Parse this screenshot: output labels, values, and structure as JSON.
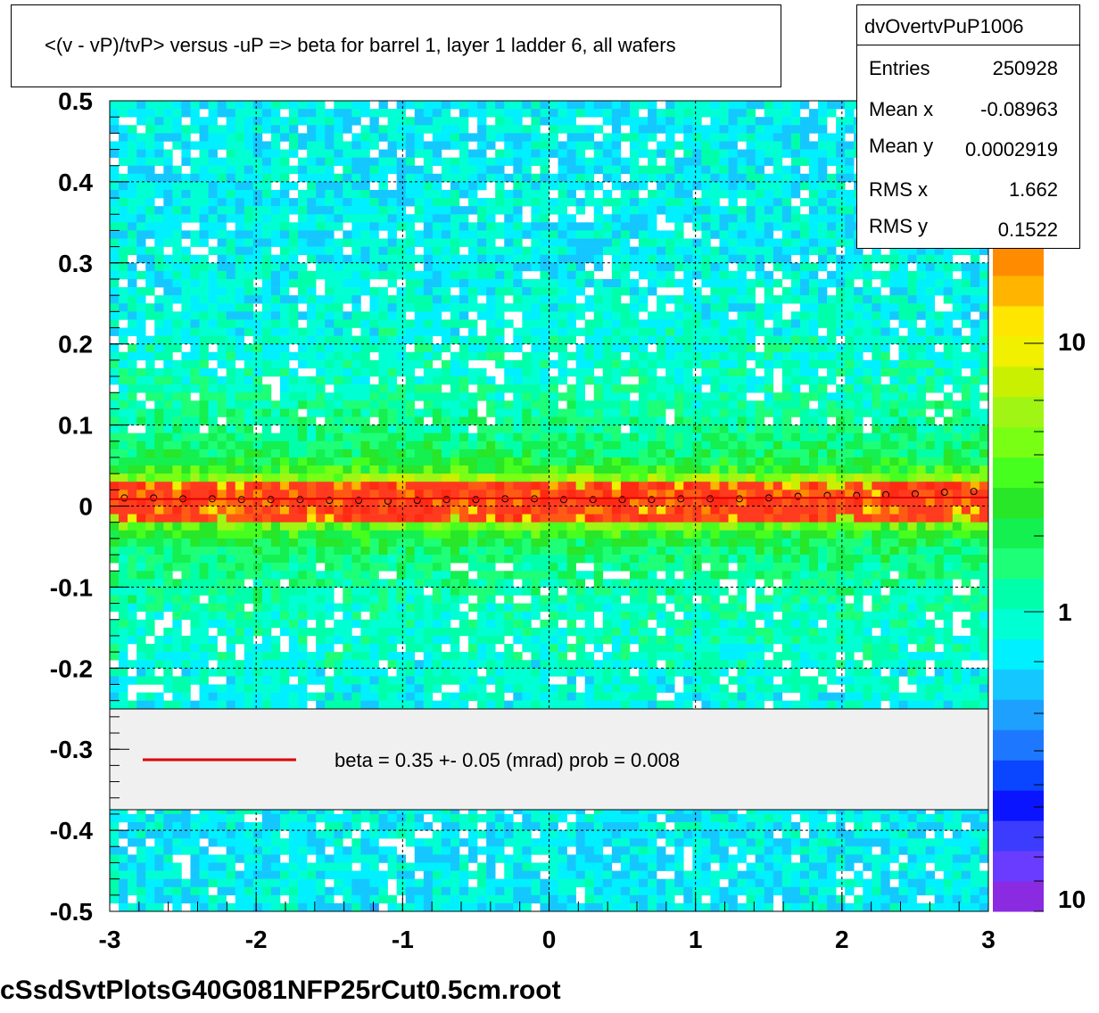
{
  "title": "<(v - vP)/tvP> versus  -uP => beta for barrel 1, layer 1 ladder 6, all wafers",
  "stats": {
    "name": "dvOvertvPuP1006",
    "rows": [
      {
        "label": "Entries",
        "value": "250928"
      },
      {
        "label": "Mean x",
        "value": "-0.08963"
      },
      {
        "label": "Mean y",
        "value": "0.0002919"
      },
      {
        "label": "RMS x",
        "value": "1.662"
      },
      {
        "label": "RMS y",
        "value": "0.1522"
      }
    ]
  },
  "legend": {
    "text": "beta =    0.35 +-  0.05 (mrad) prob = 0.008",
    "line_color": "#e00000"
  },
  "footer": "cSsdSvtPlotsG40G081NFP25rCut0.5cm.root",
  "colors": {
    "palette": [
      "#8a2be2",
      "#6a3cff",
      "#3c3cff",
      "#0a14ff",
      "#0a46ff",
      "#1e78ff",
      "#1ea0ff",
      "#14c8ff",
      "#00f0ff",
      "#00ffd2",
      "#00ffaa",
      "#1eff78",
      "#14f050",
      "#28e628",
      "#46ff1e",
      "#78ff14",
      "#a0f514",
      "#c8f000",
      "#f0f000",
      "#ffe600",
      "#ffb400",
      "#ff8c00"
    ],
    "fit_line": "#e00000"
  },
  "chart_data": {
    "type": "heatmap",
    "title": "<(v - vP)/tvP> versus  -uP => beta for barrel 1, layer 1 ladder 6, all wafers",
    "xlim": [
      -3,
      3
    ],
    "ylim": [
      -0.5,
      0.5
    ],
    "x_ticks": [
      "-3",
      "-2",
      "-1",
      "0",
      "1",
      "2",
      "3"
    ],
    "y_ticks": [
      "-0.5",
      "-0.4",
      "-0.3",
      "-0.2",
      "-0.1",
      "0",
      "0.1",
      "0.2",
      "0.3",
      "0.4",
      "0.5"
    ],
    "z_scale": "log",
    "z_tick_labels": [
      "10",
      "1",
      "10"
    ],
    "grid": true,
    "band_center_y": 0.007,
    "profile_points": {
      "x": [
        -2.9,
        -2.7,
        -2.5,
        -2.3,
        -2.1,
        -1.9,
        -1.7,
        -1.5,
        -1.3,
        -1.1,
        -0.9,
        -0.7,
        -0.5,
        -0.3,
        -0.1,
        0.1,
        0.3,
        0.5,
        0.7,
        0.9,
        1.1,
        1.3,
        1.5,
        1.7,
        1.9,
        2.1,
        2.3,
        2.5,
        2.7,
        2.9
      ],
      "y": [
        0.01,
        0.01,
        0.009,
        0.009,
        0.008,
        0.008,
        0.008,
        0.007,
        0.007,
        0.006,
        0.007,
        0.008,
        0.008,
        0.009,
        0.009,
        0.008,
        0.008,
        0.008,
        0.008,
        0.009,
        0.009,
        0.009,
        0.01,
        0.012,
        0.013,
        0.013,
        0.014,
        0.015,
        0.017,
        0.018
      ]
    },
    "fit": {
      "name": "beta",
      "x": [
        -3,
        3
      ],
      "y": [
        0.0085,
        0.0106
      ]
    }
  }
}
